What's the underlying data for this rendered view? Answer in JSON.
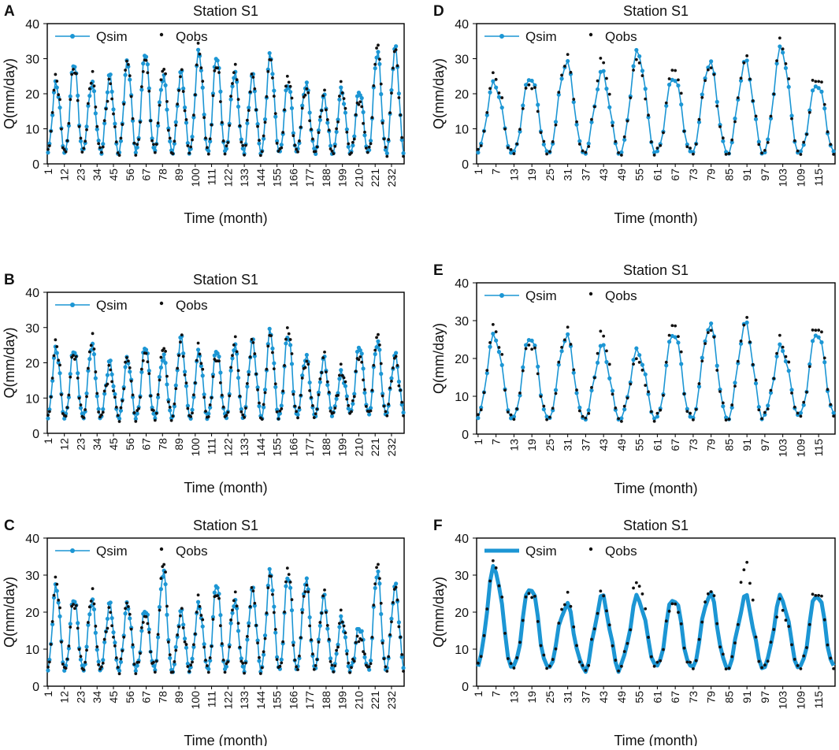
{
  "figure": {
    "panels": [
      "A",
      "B",
      "C",
      "D",
      "E",
      "F"
    ]
  },
  "colors": {
    "qsim": "#1c96d4",
    "qobs": "#111111",
    "axis": "#000000"
  },
  "chart_data": [
    {
      "id": "A",
      "type": "line+scatter",
      "title": "Station S1",
      "xlabel": "Time (month)",
      "ylabel": "Q(mm/day)",
      "ylim": [
        0,
        40
      ],
      "yticks": [
        0,
        10,
        20,
        30,
        40
      ],
      "n": 240,
      "tick_step": 11,
      "xticks": [
        "1",
        "12",
        "23",
        "34",
        "45",
        "56",
        "67",
        "78",
        "89",
        "100",
        "111",
        "122",
        "133",
        "144",
        "155",
        "166",
        "177",
        "188",
        "199",
        "210",
        "221",
        "232"
      ],
      "legend": [
        "Qsim",
        "Qobs"
      ],
      "line_width": 1.6,
      "peaks": [
        23,
        29,
        23,
        25,
        29,
        32,
        25,
        26,
        32,
        31,
        26,
        25,
        31,
        23,
        23,
        19,
        21,
        21,
        32,
        33
      ],
      "troughs": [
        3,
        3.5,
        4,
        3,
        3,
        4,
        3.5,
        3,
        4,
        3,
        4,
        3,
        3.5,
        3,
        4,
        3,
        3,
        3,
        3.5,
        3
      ],
      "obs_offsets": [
        1.5,
        -1,
        2,
        -2,
        0.5,
        -1.5,
        2.5,
        -0.5,
        1,
        -2,
        1.5,
        0,
        -1,
        2,
        -1.5,
        0.5,
        1,
        -2.5,
        2,
        -0.5
      ]
    },
    {
      "id": "B",
      "type": "line+scatter",
      "title": "Station S1",
      "xlabel": "Time (month)",
      "ylabel": "Q(mm/day)",
      "ylim": [
        0,
        40
      ],
      "yticks": [
        0,
        10,
        20,
        30,
        40
      ],
      "n": 240,
      "tick_step": 11,
      "xticks": [
        "1",
        "12",
        "23",
        "34",
        "45",
        "56",
        "67",
        "78",
        "89",
        "100",
        "111",
        "122",
        "133",
        "144",
        "155",
        "166",
        "177",
        "188",
        "199",
        "210",
        "221",
        "232"
      ],
      "legend": [
        "Qsim",
        "Qobs"
      ],
      "line_width": 1.6,
      "peaks": [
        24,
        24,
        25,
        20,
        21,
        25,
        22,
        27,
        23,
        24,
        25,
        26,
        29,
        28,
        22,
        21,
        17,
        25,
        26,
        22
      ],
      "troughs": [
        4,
        5,
        4,
        5,
        4,
        5,
        4,
        5,
        4,
        5,
        4,
        5,
        4,
        5,
        5,
        5,
        6,
        6,
        5,
        6
      ],
      "obs_offsets": [
        1.5,
        -1,
        2,
        -2,
        0.5,
        -1.5,
        2.5,
        -0.5,
        1,
        -2,
        1.5,
        0,
        -1,
        2,
        -1.5,
        0.5,
        1,
        -2.5,
        2,
        -0.5
      ]
    },
    {
      "id": "C",
      "type": "line+scatter",
      "title": "Station S1",
      "xlabel": "Time (month)",
      "ylabel": "Q(mm/day)",
      "ylim": [
        0,
        40
      ],
      "yticks": [
        0,
        10,
        20,
        30,
        40
      ],
      "n": 240,
      "tick_step": 11,
      "xticks": [
        "1",
        "12",
        "23",
        "34",
        "45",
        "56",
        "67",
        "78",
        "89",
        "100",
        "111",
        "122",
        "133",
        "144",
        "155",
        "166",
        "177",
        "188",
        "199",
        "210",
        "221",
        "232"
      ],
      "legend": [
        "Qsim",
        "Qobs"
      ],
      "line_width": 1.6,
      "peaks": [
        27,
        24,
        23,
        22,
        22,
        21,
        31,
        20,
        22,
        28,
        23,
        26,
        31,
        30,
        29,
        24,
        18,
        16,
        31,
        27
      ],
      "troughs": [
        4,
        5,
        4,
        5,
        4,
        5,
        4,
        4,
        5,
        4,
        5,
        4,
        5,
        4,
        5,
        5,
        4,
        5,
        4,
        5
      ],
      "obs_offsets": [
        1.5,
        -1,
        2,
        -2,
        0.5,
        -1.5,
        2.5,
        -0.5,
        1,
        -2,
        1.5,
        0,
        -1,
        2,
        -1.5,
        0.5,
        1,
        -2.5,
        2,
        -0.5
      ]
    },
    {
      "id": "D",
      "type": "line+scatter",
      "title": "Station S1",
      "xlabel": "Time (month)",
      "ylabel": "Q(mm/day)",
      "ylim": [
        0,
        40
      ],
      "yticks": [
        0,
        10,
        20,
        30,
        40
      ],
      "n": 120,
      "tick_step": 6,
      "xticks": [
        "1",
        "7",
        "13",
        "19",
        "25",
        "31",
        "37",
        "43",
        "49",
        "55",
        "61",
        "67",
        "73",
        "79",
        "85",
        "91",
        "97",
        "103",
        "109",
        "115"
      ],
      "legend": [
        "Qsim",
        "Qobs"
      ],
      "line_width": 1.6,
      "peaks": [
        23,
        25,
        29,
        26,
        32,
        25,
        29,
        29,
        33,
        23
      ],
      "troughs": [
        3,
        3,
        3,
        3,
        3,
        3,
        3,
        3,
        3,
        3
      ],
      "obs_offsets": [
        2,
        -1.5,
        1,
        3,
        -2,
        2.5,
        -1,
        0.5,
        1.5,
        2
      ]
    },
    {
      "id": "E",
      "type": "line+scatter",
      "title": "Station S1",
      "xlabel": "Time (month)",
      "ylabel": "Q(mm/day)",
      "ylim": [
        0,
        40
      ],
      "yticks": [
        0,
        10,
        20,
        30,
        40
      ],
      "n": 120,
      "tick_step": 6,
      "xticks": [
        "1",
        "7",
        "13",
        "19",
        "25",
        "31",
        "37",
        "43",
        "49",
        "55",
        "61",
        "67",
        "73",
        "79",
        "85",
        "91",
        "97",
        "103",
        "109",
        "115"
      ],
      "legend": [
        "Qsim",
        "Qobs"
      ],
      "line_width": 1.6,
      "peaks": [
        26,
        26,
        26,
        23,
        22,
        27,
        29,
        29,
        23,
        27
      ],
      "troughs": [
        4,
        4,
        4,
        4,
        4,
        4,
        4,
        4,
        5,
        5
      ],
      "obs_offsets": [
        2,
        -1.5,
        1,
        3,
        -2,
        2.5,
        -1,
        0.5,
        1.5,
        2
      ]
    },
    {
      "id": "F",
      "type": "line+scatter",
      "title": "Station S1",
      "xlabel": "Time (month)",
      "ylabel": "Q(mm/day)",
      "ylim": [
        0,
        40
      ],
      "yticks": [
        0,
        10,
        20,
        30,
        40
      ],
      "n": 120,
      "tick_step": 6,
      "xticks": [
        "1",
        "7",
        "13",
        "19",
        "25",
        "31",
        "37",
        "43",
        "49",
        "55",
        "61",
        "67",
        "73",
        "79",
        "85",
        "91",
        "97",
        "103",
        "109",
        "115"
      ],
      "legend": [
        "Qsim",
        "Qobs"
      ],
      "line_width": 5,
      "peaks": [
        32,
        27,
        22,
        24,
        24,
        24,
        25,
        24,
        24,
        25
      ],
      "troughs": [
        5,
        5,
        5,
        4,
        6,
        5,
        5,
        5,
        5,
        5
      ],
      "obs_offsets": [
        1,
        -1,
        2,
        0.5,
        4,
        -1,
        1,
        8,
        -2,
        1
      ]
    }
  ]
}
